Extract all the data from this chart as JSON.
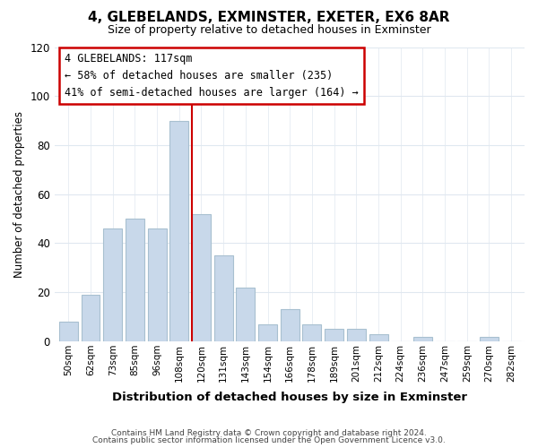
{
  "title": "4, GLEBELANDS, EXMINSTER, EXETER, EX6 8AR",
  "subtitle": "Size of property relative to detached houses in Exminster",
  "xlabel": "Distribution of detached houses by size in Exminster",
  "ylabel": "Number of detached properties",
  "bar_labels": [
    "50sqm",
    "62sqm",
    "73sqm",
    "85sqm",
    "96sqm",
    "108sqm",
    "120sqm",
    "131sqm",
    "143sqm",
    "154sqm",
    "166sqm",
    "178sqm",
    "189sqm",
    "201sqm",
    "212sqm",
    "224sqm",
    "236sqm",
    "247sqm",
    "259sqm",
    "270sqm",
    "282sqm"
  ],
  "bar_heights": [
    8,
    19,
    46,
    50,
    46,
    90,
    52,
    35,
    22,
    7,
    13,
    7,
    5,
    5,
    3,
    0,
    2,
    0,
    0,
    2,
    0
  ],
  "bar_color": "#c8d8ea",
  "bar_edge_color": "#a8c0d0",
  "vline_color": "#cc0000",
  "ylim": [
    0,
    120
  ],
  "yticks": [
    0,
    20,
    40,
    60,
    80,
    100,
    120
  ],
  "annotation_title": "4 GLEBELANDS: 117sqm",
  "annotation_line1": "← 58% of detached houses are smaller (235)",
  "annotation_line2": "41% of semi-detached houses are larger (164) →",
  "annotation_box_color": "#ffffff",
  "annotation_box_edge": "#cc0000",
  "footer1": "Contains HM Land Registry data © Crown copyright and database right 2024.",
  "footer2": "Contains public sector information licensed under the Open Government Licence v3.0.",
  "background_color": "#ffffff",
  "plot_background": "#ffffff",
  "grid_color": "#e0e8f0"
}
